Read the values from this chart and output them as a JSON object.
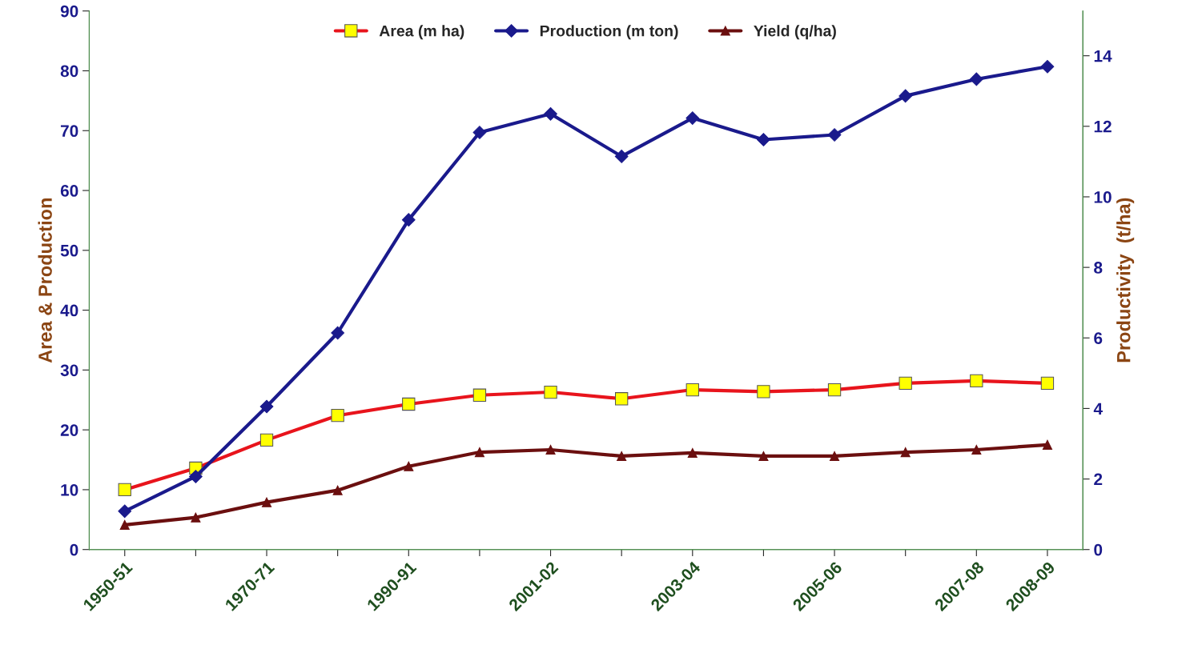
{
  "chart_data": {
    "type": "line",
    "ylabel": "Area & Production",
    "y2label": "Productivity  (t/ha)",
    "categories": [
      "1950-51",
      null,
      "1970-71",
      null,
      "1990-91",
      null,
      "2001-02",
      null,
      "2003-04",
      null,
      "2005-06",
      null,
      "2007-08",
      "2008-09"
    ],
    "series": [
      {
        "name": "Area (m ha)",
        "color": "#e8141c",
        "marker": "square",
        "values": [
          10.0,
          13.6,
          18.3,
          22.4,
          24.3,
          25.8,
          26.3,
          25.2,
          26.7,
          26.4,
          26.7,
          27.8,
          28.2,
          27.8
        ]
      },
      {
        "name": "Production (m ton)",
        "color": "#1a1a8c",
        "marker": "diamond",
        "values": [
          6.4,
          12.2,
          23.9,
          36.2,
          55.1,
          69.7,
          72.8,
          65.7,
          72.1,
          68.5,
          69.3,
          75.8,
          78.6,
          80.7
        ]
      },
      {
        "name": "Yield (q/ha)",
        "color": "#6b0f0f",
        "marker": "triangle",
        "axis": "y2",
        "values": [
          0.7,
          0.91,
          1.34,
          1.68,
          2.36,
          2.76,
          2.83,
          2.65,
          2.74,
          2.65,
          2.65,
          2.76,
          2.83,
          2.97
        ]
      }
    ],
    "ylim": [
      0,
      90
    ],
    "yticks": [
      0,
      10,
      20,
      30,
      40,
      50,
      60,
      70,
      80,
      90
    ],
    "y2lim": [
      0,
      15.27
    ],
    "y2ticks": [
      0,
      2,
      4,
      6,
      8,
      10,
      12,
      14
    ],
    "grid": false,
    "legend": "top"
  }
}
